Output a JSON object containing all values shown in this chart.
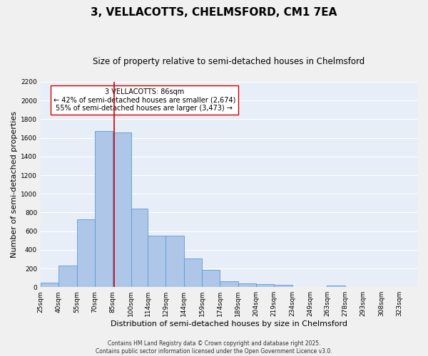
{
  "title": "3, VELLACOTTS, CHELMSFORD, CM1 7EA",
  "subtitle": "Size of property relative to semi-detached houses in Chelmsford",
  "xlabel": "Distribution of semi-detached houses by size in Chelmsford",
  "ylabel": "Number of semi-detached properties",
  "bins": [
    "25sqm",
    "40sqm",
    "55sqm",
    "70sqm",
    "85sqm",
    "100sqm",
    "114sqm",
    "129sqm",
    "144sqm",
    "159sqm",
    "174sqm",
    "189sqm",
    "204sqm",
    "219sqm",
    "234sqm",
    "249sqm",
    "263sqm",
    "278sqm",
    "293sqm",
    "308sqm",
    "323sqm"
  ],
  "bar_values": [
    45,
    230,
    730,
    1675,
    1660,
    845,
    555,
    555,
    305,
    185,
    65,
    40,
    35,
    25,
    0,
    0,
    15,
    0,
    0,
    0,
    0
  ],
  "bar_left_edges": [
    25,
    40,
    55,
    70,
    85,
    100,
    114,
    129,
    144,
    159,
    174,
    189,
    204,
    219,
    234,
    249,
    263,
    278,
    293,
    308,
    323
  ],
  "bar_widths": [
    15,
    15,
    15,
    15,
    15,
    14,
    15,
    15,
    15,
    15,
    15,
    15,
    15,
    15,
    15,
    14,
    15,
    15,
    15,
    15,
    15
  ],
  "bar_color": "#aec6e8",
  "bar_edge_color": "#5b9bd5",
  "property_value": 86,
  "red_line_color": "#cc0000",
  "annotation_text": "3 VELLACOTTS: 86sqm\n← 42% of semi-detached houses are smaller (2,674)\n55% of semi-detached houses are larger (3,473) →",
  "annotation_box_color": "#ffffff",
  "annotation_box_edge": "#cc0000",
  "ylim": [
    0,
    2200
  ],
  "yticks": [
    0,
    200,
    400,
    600,
    800,
    1000,
    1200,
    1400,
    1600,
    1800,
    2000,
    2200
  ],
  "background_color": "#e8eef7",
  "grid_color": "#ffffff",
  "footer_line1": "Contains HM Land Registry data © Crown copyright and database right 2025.",
  "footer_line2": "Contains public sector information licensed under the Open Government Licence v3.0.",
  "title_fontsize": 11,
  "subtitle_fontsize": 8.5,
  "tick_fontsize": 6.5,
  "xlabel_fontsize": 8,
  "ylabel_fontsize": 8,
  "annotation_fontsize": 7,
  "footer_fontsize": 5.5
}
